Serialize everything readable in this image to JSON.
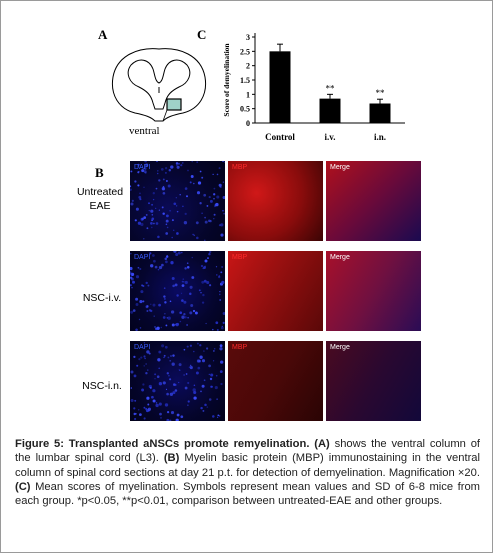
{
  "panels": {
    "a": "A",
    "b": "B",
    "c": "C"
  },
  "schematic": {
    "label": "ventral"
  },
  "chart_data": {
    "type": "bar",
    "categories": [
      "Control",
      "i.v.",
      "i.n."
    ],
    "values": [
      2.5,
      0.85,
      0.68
    ],
    "errors": [
      0.25,
      0.15,
      0.15
    ],
    "significance": [
      "",
      "**",
      "**"
    ],
    "ylabel": "Score of demyelination",
    "xlabel": "",
    "title": "",
    "ylim": [
      0,
      3
    ],
    "yticks": [
      0,
      0.5,
      1,
      1.5,
      2,
      2.5,
      3
    ],
    "ytick_labels": [
      "0",
      "0.5",
      "1",
      "1.5",
      "2",
      "2.5",
      "3"
    ],
    "bar_color": "#000000",
    "grid": false
  },
  "micrographs": {
    "columns": [
      "DAPI",
      "MBP",
      "Merge"
    ],
    "column_label_colors": [
      "#3a5cff",
      "#ff2a2a",
      "#ffffff"
    ],
    "rows": [
      {
        "label_line1": "Untreated",
        "label_line2": "EAE"
      },
      {
        "label_line1": "NSC-i.v.",
        "label_line2": ""
      },
      {
        "label_line1": "NSC-i.n.",
        "label_line2": ""
      }
    ]
  },
  "caption": {
    "fig": "Figure 5: Transplanted aNSCs promote remyelination.",
    "a_tag": "(A)",
    "a_text": "shows the ventral column of the lumbar spinal cord (L3).",
    "b_tag": "(B)",
    "b_text": "Myelin basic protein (MBP) immunostaining in the ventral column of spinal cord sections at day 21 p.t. for detection of demyelination. Magnification ×20.",
    "c_tag": "(C)",
    "c_text": "Mean scores of myelination. Symbols represent mean values and SD of 6-8 mice from each group. *p<0.05, **p<0.01, comparison between untreated-EAE and other groups."
  }
}
